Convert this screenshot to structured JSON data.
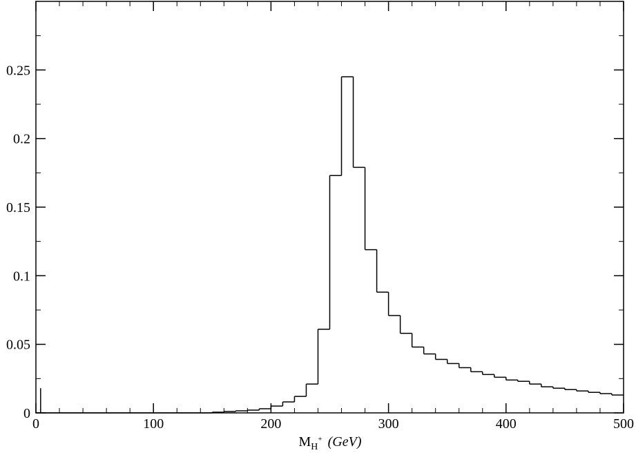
{
  "chart_data": {
    "type": "bar",
    "style": "step-histogram",
    "bin_width": 10,
    "bin_starts": [
      150,
      160,
      170,
      180,
      190,
      200,
      210,
      220,
      230,
      240,
      250,
      260,
      270,
      280,
      290,
      300,
      310,
      320,
      330,
      340,
      350,
      360,
      370,
      380,
      390,
      400,
      410,
      420,
      430,
      440,
      450,
      460,
      470,
      480,
      490
    ],
    "values": [
      0.0005,
      0.001,
      0.0015,
      0.002,
      0.003,
      0.005,
      0.008,
      0.012,
      0.021,
      0.061,
      0.173,
      0.245,
      0.179,
      0.119,
      0.088,
      0.071,
      0.058,
      0.048,
      0.043,
      0.039,
      0.036,
      0.033,
      0.03,
      0.028,
      0.026,
      0.024,
      0.023,
      0.021,
      0.019,
      0.018,
      0.017,
      0.016,
      0.015,
      0.014,
      0.013
    ],
    "spike": {
      "x": 4,
      "y": 0.018
    },
    "xlim": [
      0,
      500
    ],
    "ylim": [
      0,
      0.3
    ],
    "x_ticks": [
      "0",
      "100",
      "200",
      "300",
      "400",
      "500"
    ],
    "y_ticks": [
      "0",
      "0.05",
      "0.1",
      "0.15",
      "0.2",
      "0.25"
    ],
    "xlabel": {
      "main": "M",
      "sub": "H",
      "sup": "+",
      "unit": "(GeV)"
    },
    "ylabel": "",
    "title": "",
    "grid": false,
    "line_color": "#000000"
  }
}
